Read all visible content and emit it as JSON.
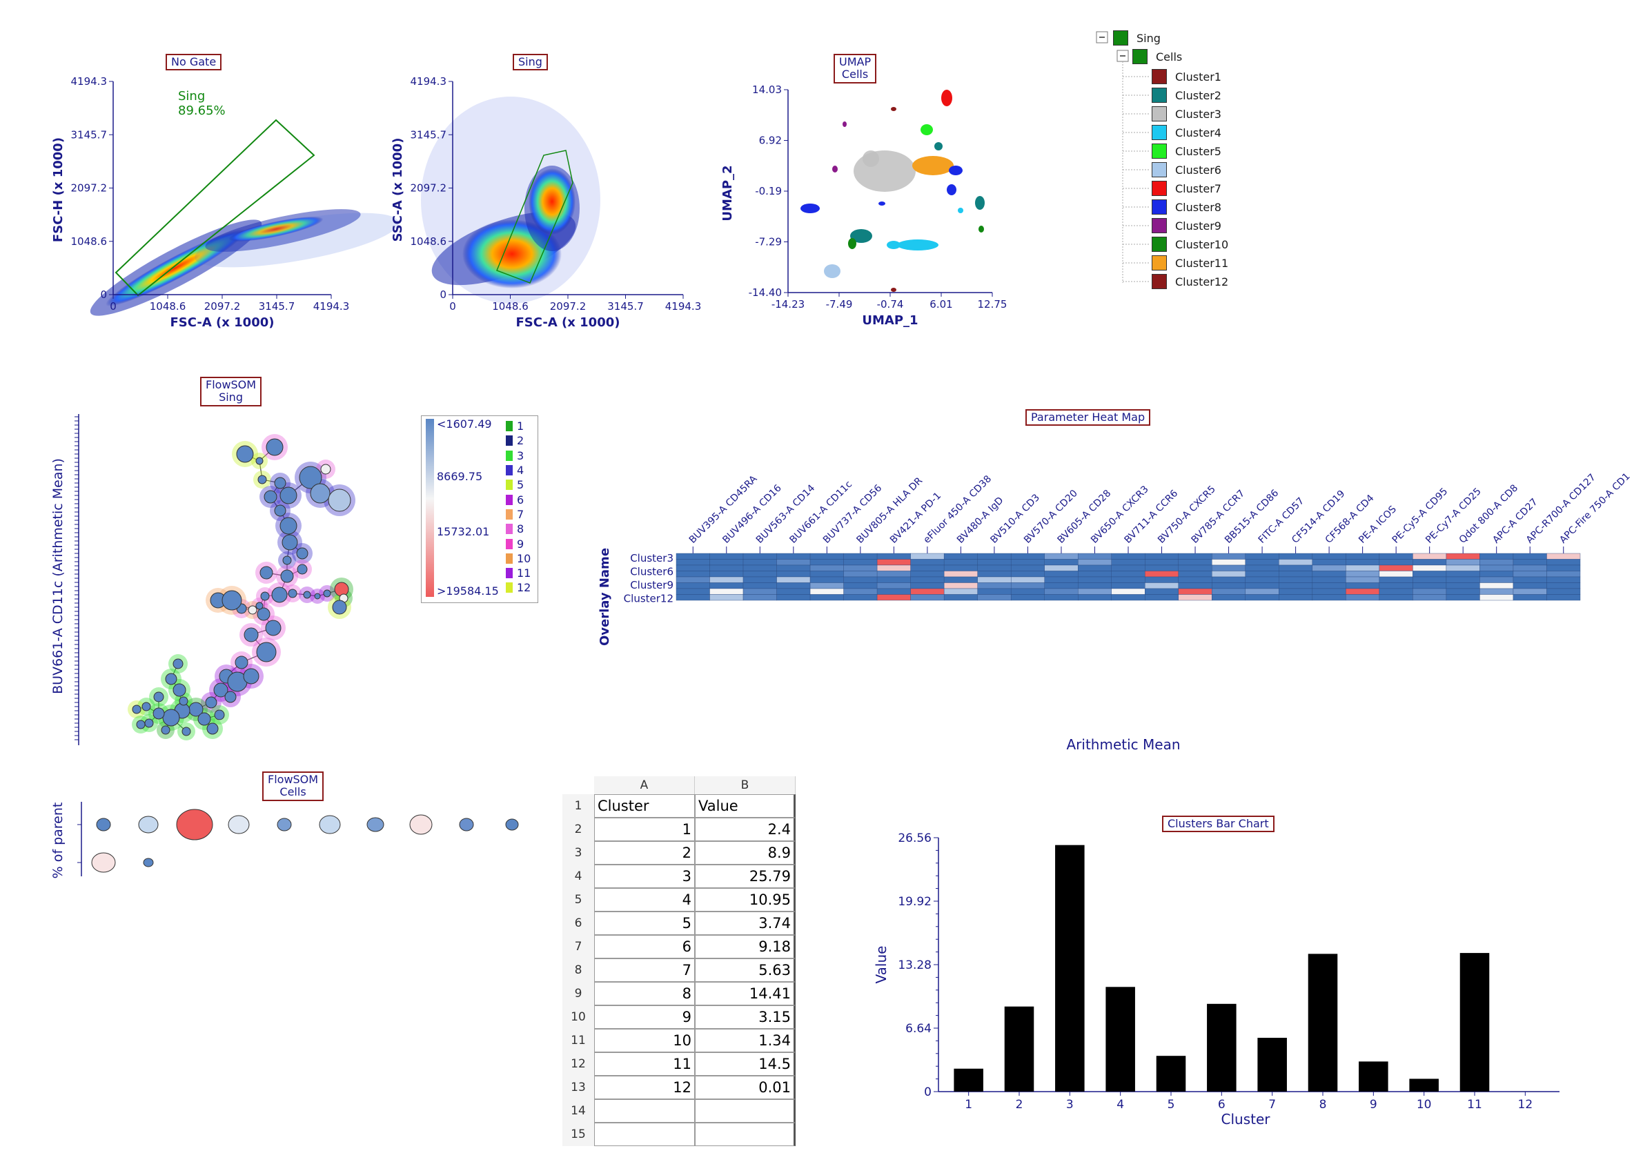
{
  "plots": {
    "no_gate": {
      "title": "No Gate",
      "xlabel": "FSC-A (x 1000)",
      "ylabel": "FSC-H (x 1000)",
      "xticks": [
        "0",
        "1048.6",
        "2097.2",
        "3145.7",
        "4194.3"
      ],
      "yticks": [
        "0",
        "1048.6",
        "2097.2",
        "3145.7",
        "4194.3"
      ],
      "gate_name": "Sing",
      "gate_pct": "89.65%"
    },
    "sing": {
      "title": "Sing",
      "xlabel": "FSC-A (x 1000)",
      "ylabel": "SSC-A (x 1000)",
      "xticks": [
        "0",
        "1048.6",
        "2097.2",
        "3145.7",
        "4194.3"
      ],
      "yticks": [
        "0",
        "1048.6",
        "2097.2",
        "3145.7",
        "4194.3"
      ]
    },
    "umap": {
      "title_line1": "UMAP",
      "title_line2": "Cells",
      "xlabel": "UMAP_1",
      "ylabel": "UMAP_2",
      "xticks": [
        "-14.23",
        "-7.49",
        "-0.74",
        "6.01",
        "12.75"
      ],
      "yticks": [
        "-14.40",
        "-7.29",
        "-0.19",
        "6.92",
        "14.03"
      ]
    },
    "flowsom_tree": {
      "title_line1": "FlowSOM",
      "title_line2": "Sing",
      "ylabel": "BUV661-A CD11c (Arithmetic Mean)",
      "scale_labels": [
        "<1607.49",
        "8669.75",
        "15732.01",
        ">19584.15"
      ],
      "legend": [
        {
          "label": "1",
          "color": "#1faa1f"
        },
        {
          "label": "2",
          "color": "#1a237e"
        },
        {
          "label": "3",
          "color": "#33dd33"
        },
        {
          "label": "4",
          "color": "#3b2fc9"
        },
        {
          "label": "5",
          "color": "#c6ef2a"
        },
        {
          "label": "6",
          "color": "#b21ed6"
        },
        {
          "label": "7",
          "color": "#f4a460"
        },
        {
          "label": "8",
          "color": "#e75fd8"
        },
        {
          "label": "9",
          "color": "#ee3fc7"
        },
        {
          "label": "10",
          "color": "#ee9b4a"
        },
        {
          "label": "11",
          "color": "#9a1ddb"
        },
        {
          "label": "12",
          "color": "#d7ec2c"
        }
      ]
    },
    "heatmap": {
      "title": "Parameter Heat Map",
      "ylabel": "Overlay Name",
      "xlabel": "Arithmetic Mean",
      "row_labels": [
        "Cluster3",
        "Cluster6",
        "Cluster9",
        "Cluster12"
      ],
      "columns": [
        "BUV395-A CD45RA",
        "BUV496-A CD16",
        "BUV563-A CD14",
        "BUV661-A CD11c",
        "BUV737-A CD56",
        "BUV805-A HLA DR",
        "BV421-A PD-1",
        "eFluor 450-A CD38",
        "BV480-A IgD",
        "BV510-A CD3",
        "BV570-A CD20",
        "BV605-A CD28",
        "BV650-A CXCR3",
        "BV711-A CCR6",
        "BV750-A CXCR5",
        "BV785-A CCR7",
        "BB515-A CD86",
        "FITC-A CD57",
        "CF514-A CD19",
        "CF568-A CD4",
        "PE-A ICOS",
        "PE-Cy5-A CD95",
        "PE-Cy7-A CD25",
        "Qdot 800-A CD8",
        "APC-A CD27",
        "APC-R700-A CD127",
        "APC-Fire 750-A CD1"
      ]
    },
    "flowsom_bubbles": {
      "title_line1": "FlowSOM",
      "title_line2": "Cells",
      "ylabel": "% of parent"
    },
    "bar_chart": {
      "title": "Clusters Bar Chart"
    }
  },
  "tree": {
    "root": {
      "label": "Sing",
      "color": "#118811"
    },
    "child": {
      "label": "Cells",
      "color": "#118811"
    },
    "clusters": [
      {
        "label": "Cluster1",
        "color": "#8b1a1a"
      },
      {
        "label": "Cluster2",
        "color": "#0f8080"
      },
      {
        "label": "Cluster3",
        "color": "#c0c0c0"
      },
      {
        "label": "Cluster4",
        "color": "#1ec8f0"
      },
      {
        "label": "Cluster5",
        "color": "#22ee22"
      },
      {
        "label": "Cluster6",
        "color": "#a8c8ea"
      },
      {
        "label": "Cluster7",
        "color": "#ee1111"
      },
      {
        "label": "Cluster8",
        "color": "#1a2ae6"
      },
      {
        "label": "Cluster9",
        "color": "#8a1a8a"
      },
      {
        "label": "Cluster10",
        "color": "#118811"
      },
      {
        "label": "Cluster11",
        "color": "#f4a020"
      },
      {
        "label": "Cluster12",
        "color": "#8b1a1a"
      }
    ]
  },
  "spreadsheet": {
    "col_headers": [
      "A",
      "B"
    ],
    "row_numbers": [
      "1",
      "2",
      "3",
      "4",
      "5",
      "6",
      "7",
      "8",
      "9",
      "10",
      "11",
      "12",
      "13",
      "14",
      "15"
    ],
    "header_row": [
      "Cluster",
      "Value"
    ],
    "rows": [
      [
        "1",
        "2.4"
      ],
      [
        "2",
        "8.9"
      ],
      [
        "3",
        "25.79"
      ],
      [
        "4",
        "10.95"
      ],
      [
        "5",
        "3.74"
      ],
      [
        "6",
        "9.18"
      ],
      [
        "7",
        "5.63"
      ],
      [
        "8",
        "14.41"
      ],
      [
        "9",
        "3.15"
      ],
      [
        "10",
        "1.34"
      ],
      [
        "11",
        "14.5"
      ],
      [
        "12",
        "0.01"
      ]
    ]
  },
  "chart_data": [
    {
      "type": "bar",
      "title": "Clusters Bar Chart",
      "xlabel": "Cluster",
      "ylabel": "Value",
      "categories": [
        "1",
        "2",
        "3",
        "4",
        "5",
        "6",
        "7",
        "8",
        "9",
        "10",
        "11",
        "12"
      ],
      "values": [
        2.4,
        8.9,
        25.79,
        10.95,
        3.74,
        9.18,
        5.63,
        14.41,
        3.15,
        1.34,
        14.5,
        0.01
      ],
      "yticks": [
        "0",
        "6.64",
        "13.28",
        "19.92",
        "26.56"
      ],
      "ylim": [
        0,
        26.56
      ],
      "color": "#000000"
    }
  ]
}
